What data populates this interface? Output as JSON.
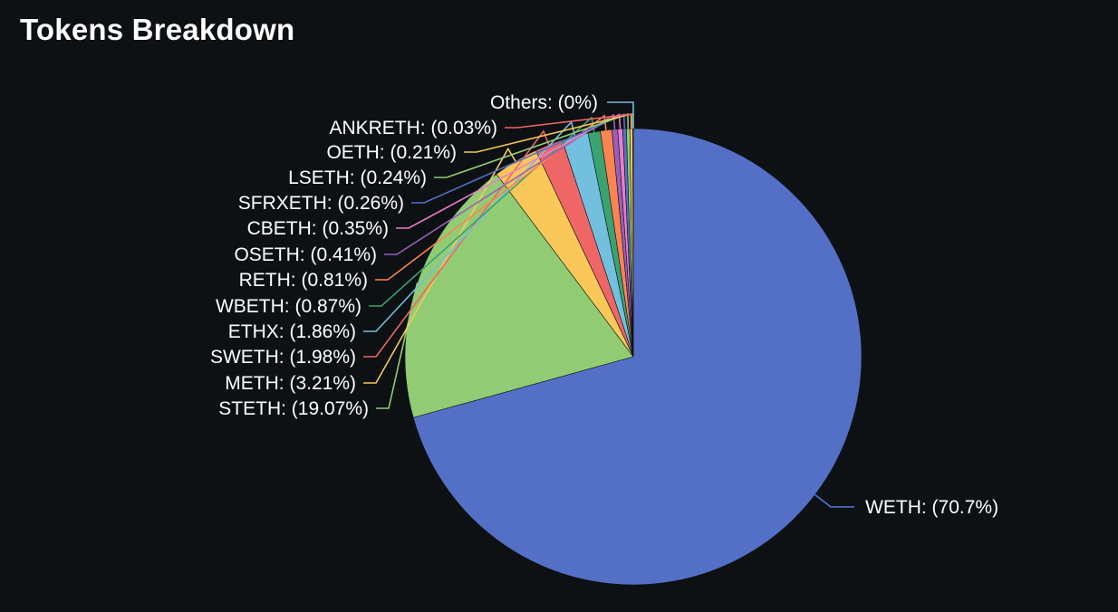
{
  "header": {
    "title": "Tokens Breakdown"
  },
  "chart_data": {
    "type": "pie",
    "title": "Tokens Breakdown",
    "slices": [
      {
        "label": "WETH: (70.7%)",
        "value": 70.7,
        "color": "#5470c6"
      },
      {
        "label": "STETH: (19.07%)",
        "value": 19.07,
        "color": "#91cc75"
      },
      {
        "label": "METH: (3.21%)",
        "value": 3.21,
        "color": "#fac858"
      },
      {
        "label": "SWETH: (1.98%)",
        "value": 1.98,
        "color": "#ee6666"
      },
      {
        "label": "ETHX: (1.86%)",
        "value": 1.86,
        "color": "#73c0de"
      },
      {
        "label": "WBETH: (0.87%)",
        "value": 0.87,
        "color": "#3ba272"
      },
      {
        "label": "RETH: (0.81%)",
        "value": 0.81,
        "color": "#fc8452"
      },
      {
        "label": "OSETH: (0.41%)",
        "value": 0.41,
        "color": "#9a60b4"
      },
      {
        "label": "CBETH: (0.35%)",
        "value": 0.35,
        "color": "#ea7ccc"
      },
      {
        "label": "SFRXETH: (0.26%)",
        "value": 0.26,
        "color": "#5470c6"
      },
      {
        "label": "LSETH: (0.24%)",
        "value": 0.24,
        "color": "#91cc75"
      },
      {
        "label": "OETH: (0.21%)",
        "value": 0.21,
        "color": "#fac858"
      },
      {
        "label": "ANKRETH: (0.03%)",
        "value": 0.03,
        "color": "#ee6666"
      },
      {
        "label": "Others: (0%)",
        "value": 0,
        "color": "#73c0de"
      }
    ],
    "legend": "none",
    "label_placement": "outside-with-leader-lines"
  }
}
